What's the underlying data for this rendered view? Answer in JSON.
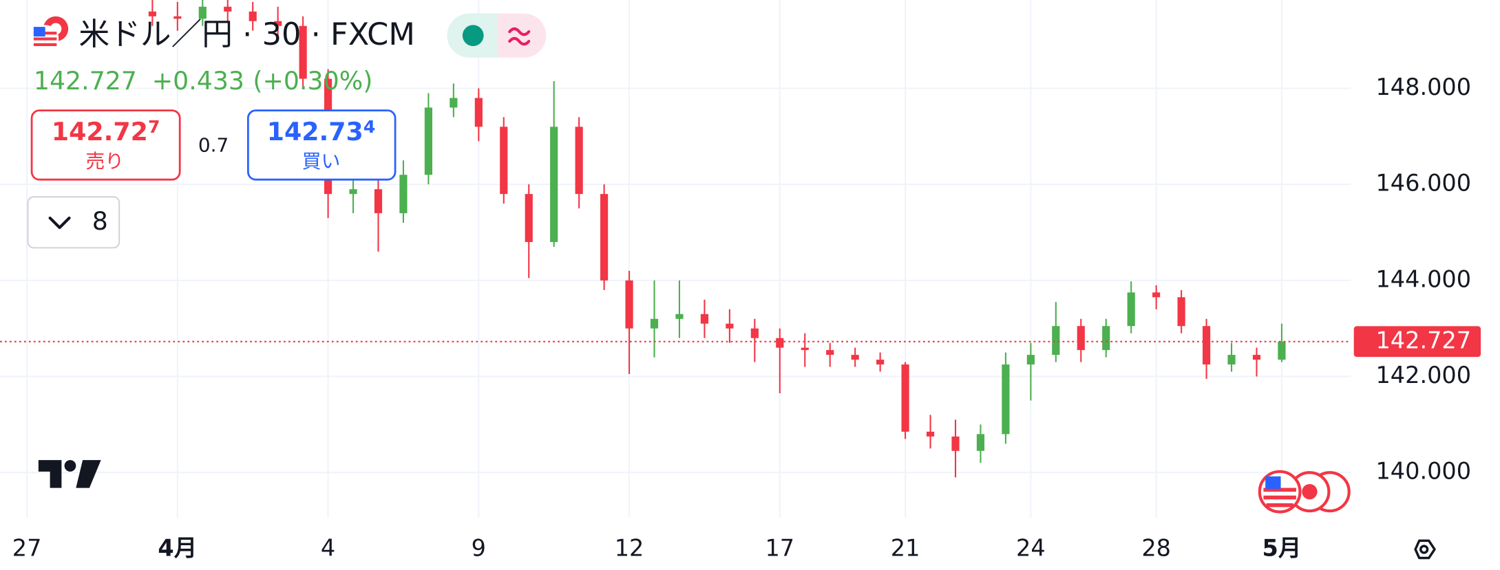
{
  "header": {
    "title": "米ドル／円 · 30 · FXCM",
    "last": "142.727",
    "change": "+0.433",
    "change_pct": "(+0.30%)",
    "sell": {
      "price": "142.72",
      "pip": "7",
      "label": "売り"
    },
    "spread": "0.7",
    "buy": {
      "price": "142.73",
      "pip": "4",
      "label": "買い"
    },
    "indicators": "8"
  },
  "chart_data": {
    "type": "candlestick",
    "up_color": "#4caf50",
    "down_color": "#f23645",
    "grid": true,
    "categories": [
      "27",
      null,
      null,
      null,
      null,
      null,
      "4月",
      null,
      null,
      null,
      null,
      null,
      "4",
      null,
      null,
      null,
      null,
      null,
      "9",
      null,
      null,
      null,
      null,
      null,
      "12",
      null,
      null,
      null,
      null,
      null,
      "17",
      null,
      null,
      null,
      null,
      "21",
      null,
      null,
      null,
      null,
      "24",
      null,
      null,
      null,
      null,
      "28",
      null,
      null,
      null,
      null,
      "5月"
    ],
    "open": [
      null,
      null,
      null,
      null,
      null,
      149.6,
      149.5,
      149.45,
      149.7,
      149.6,
      149.4,
      149.3,
      148.2,
      145.8,
      145.9,
      145.4,
      146.2,
      147.6,
      147.8,
      147.2,
      145.8,
      144.8,
      147.2,
      145.8,
      144.0,
      143.0,
      143.2,
      143.3,
      143.1,
      143.0,
      142.8,
      142.6,
      142.55,
      142.45,
      142.35,
      142.25,
      140.85,
      140.75,
      140.45,
      140.8,
      142.25,
      142.45,
      143.05,
      142.55,
      143.05,
      143.75,
      143.65,
      143.05,
      142.25,
      142.45,
      142.35
    ],
    "high": [
      null,
      null,
      null,
      null,
      null,
      149.9,
      149.8,
      149.9,
      149.9,
      149.8,
      149.7,
      149.5,
      148.4,
      146.3,
      146.1,
      146.5,
      147.9,
      148.1,
      148.0,
      147.4,
      146.0,
      148.15,
      147.4,
      146.0,
      144.2,
      144.0,
      144.0,
      143.6,
      143.4,
      143.2,
      143.0,
      142.9,
      142.7,
      142.6,
      142.5,
      142.3,
      141.2,
      141.1,
      141.0,
      142.5,
      142.7,
      143.55,
      143.2,
      143.2,
      143.98,
      143.9,
      143.8,
      143.2,
      142.7,
      142.6,
      143.1
    ],
    "low": [
      null,
      null,
      null,
      null,
      null,
      149.3,
      149.2,
      149.3,
      149.4,
      149.2,
      149.0,
      148.0,
      145.3,
      145.4,
      144.6,
      145.2,
      146.0,
      147.4,
      146.9,
      145.6,
      144.05,
      144.7,
      145.5,
      143.8,
      142.05,
      142.4,
      142.8,
      142.8,
      142.7,
      142.3,
      141.65,
      142.2,
      142.2,
      142.2,
      142.1,
      140.7,
      140.5,
      139.9,
      140.2,
      140.6,
      141.5,
      142.3,
      142.3,
      142.4,
      142.9,
      143.4,
      142.9,
      141.95,
      142.1,
      142.0,
      142.3
    ],
    "close": [
      null,
      null,
      null,
      null,
      null,
      149.5,
      149.45,
      149.7,
      149.6,
      149.4,
      149.3,
      148.2,
      145.8,
      145.9,
      145.4,
      146.2,
      147.6,
      147.8,
      147.2,
      145.8,
      144.8,
      147.2,
      145.8,
      144.0,
      143.0,
      143.2,
      143.3,
      143.1,
      143.0,
      142.8,
      142.6,
      142.55,
      142.45,
      142.35,
      142.25,
      140.85,
      140.75,
      140.45,
      140.8,
      142.25,
      142.45,
      143.05,
      142.55,
      143.05,
      143.75,
      143.65,
      143.05,
      142.25,
      142.45,
      142.35,
      142.727
    ],
    "current_price": 142.727,
    "current_color": "#f23645",
    "ylim": [
      139.06,
      149.84
    ],
    "yticks": [
      {
        "value": 140,
        "label": "140.000"
      },
      {
        "value": 142,
        "label": "142.000"
      },
      {
        "value": 144,
        "label": "144.000"
      },
      {
        "value": 146,
        "label": "146.000"
      },
      {
        "value": 148,
        "label": "148.000"
      }
    ]
  }
}
